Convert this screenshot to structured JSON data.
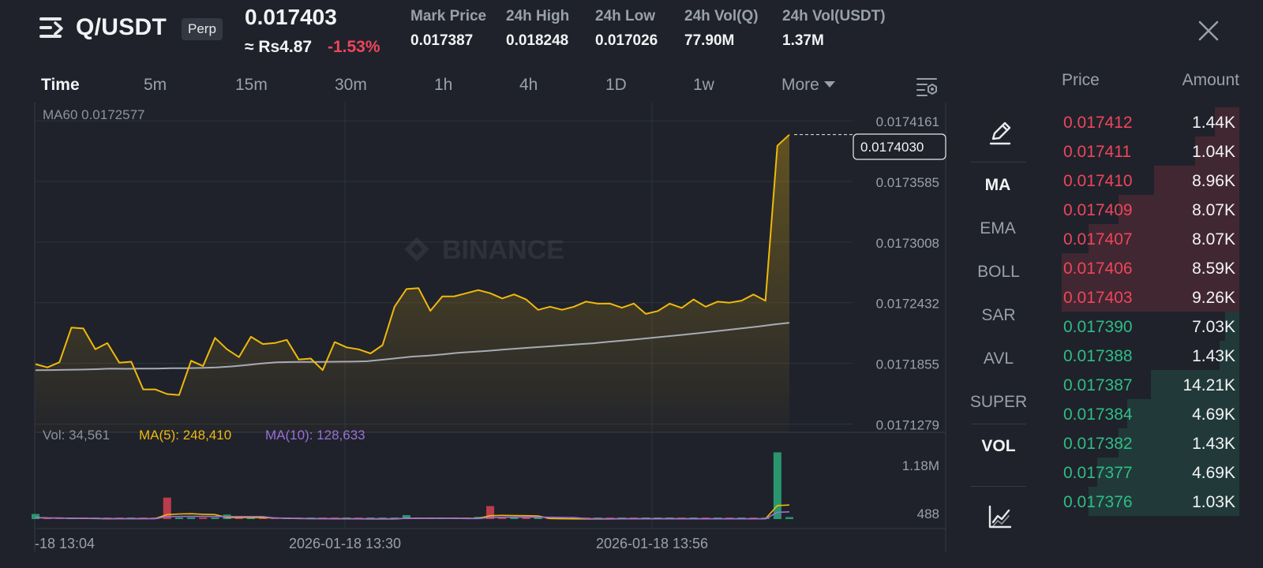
{
  "header": {
    "pair": "Q/USDT",
    "contract_type": "Perp",
    "last_price": "0.017403",
    "fiat_price": "≈ Rs4.87",
    "change_pct": "-1.53%",
    "stats": [
      {
        "label": "Mark Price",
        "value": "0.017387"
      },
      {
        "label": "24h High",
        "value": "0.018248"
      },
      {
        "label": "24h Low",
        "value": "0.017026"
      },
      {
        "label": "24h Vol(Q)",
        "value": "77.90M"
      },
      {
        "label": "24h Vol(USDT)",
        "value": "1.37M"
      }
    ]
  },
  "timeframes": [
    {
      "label": "Time",
      "active": true
    },
    {
      "label": "5m"
    },
    {
      "label": "15m"
    },
    {
      "label": "30m"
    },
    {
      "label": "1h"
    },
    {
      "label": "4h"
    },
    {
      "label": "1D"
    },
    {
      "label": "1w"
    },
    {
      "label": "More"
    }
  ],
  "indicators": [
    {
      "label": "MA",
      "on": true
    },
    {
      "label": "EMA"
    },
    {
      "label": "BOLL"
    },
    {
      "label": "SAR"
    },
    {
      "label": "AVL"
    },
    {
      "label": "SUPER"
    },
    {
      "label": "VOL",
      "on": true
    }
  ],
  "colors": {
    "up": "#2ebd85",
    "down": "#f0455a",
    "price_line": "#f0b90b",
    "ma60_line": "#a7abb4",
    "ma10_vol": "#9b6fd6",
    "bg": "#1f222b"
  },
  "icons": [
    "menu-icon",
    "close-icon",
    "chart-settings-icon",
    "pencil-icon",
    "depth-chart-icon",
    "binance-logo-icon"
  ],
  "chart_data": [
    {
      "type": "line",
      "title": "",
      "legend": "MA60 0.0172577",
      "watermark": "BINANCE",
      "last_price_label": "0.0174030",
      "y_ticks": [
        "0.0174161",
        "0.0173585",
        "0.0173008",
        "0.0172432",
        "0.0171855",
        "0.0171279"
      ],
      "ylim": [
        0.01712,
        0.017426
      ],
      "x_labels": [
        "-18 13:04",
        "2026-01-18 13:30",
        "2026-01-18 13:56"
      ],
      "series": [
        {
          "values": [
            0.0171848,
            0.0171817,
            0.0171866,
            0.0172196,
            0.0172187,
            0.017199,
            0.0172048,
            0.0171862,
            0.0171871,
            0.0171608,
            0.0171608,
            0.0171564,
            0.0171555,
            0.017188,
            0.017183,
            0.0172098,
            0.017199,
            0.0171915,
            0.0172108,
            0.0172039,
            0.0172049,
            0.0172079,
            0.0171892,
            0.0171901,
            0.0171792,
            0.0172058,
            0.0172008,
            0.0171989,
            0.017195,
            0.0172029,
            0.0172394,
            0.0172562,
            0.0172571,
            0.0172355,
            0.0172492,
            0.0172493,
            0.0172522,
            0.0172552,
            0.0172522,
            0.0172473,
            0.0172511,
            0.0172463,
            0.0172364,
            0.0172394,
            0.0172365,
            0.0172394,
            0.0172443,
            0.0172423,
            0.0172424,
            0.0172384,
            0.0172424,
            0.0172326,
            0.0172353,
            0.0172423,
            0.0172383,
            0.0172463,
            0.0172394,
            0.0172442,
            0.0172432,
            0.0172452,
            0.017251,
            0.0172451,
            0.0173925,
            0.017403
          ]
        },
        {
          "name": "MA60",
          "values": [
            0.017179,
            0.0171792,
            0.0171795,
            0.0171796,
            0.01718,
            0.0171805,
            0.0171804,
            0.0171806,
            0.0171806,
            0.017181,
            0.017181,
            0.0171812,
            0.0171817,
            0.0171826,
            0.017184,
            0.0171854,
            0.0171866,
            0.0171868,
            0.017187,
            0.017187,
            0.0171871,
            0.0171872,
            0.0171876,
            0.017189,
            0.0171905,
            0.017192,
            0.0171928,
            0.017194,
            0.0171955,
            0.0171965,
            0.0171975,
            0.0171987,
            0.0171997,
            0.0172007,
            0.0172017,
            0.0172027,
            0.0172037,
            0.0172047,
            0.017206,
            0.0172073,
            0.0172086,
            0.01721,
            0.0172114,
            0.0172128,
            0.0172143,
            0.0172159,
            0.0172175,
            0.0172191,
            0.0172207,
            0.0172225,
            0.0172242
          ]
        }
      ]
    },
    {
      "type": "bar",
      "title": "",
      "legend": {
        "vol": "Vol: 34,561",
        "ma5": "MA(5): 248,410",
        "ma10": "MA(10): 128,633"
      },
      "y_ticks": [
        "1.18M",
        "488"
      ],
      "ylim": [
        0,
        1200000
      ],
      "values": [
        90000,
        2000,
        6000,
        8000,
        2000,
        4000,
        8000,
        12000,
        9000,
        14000,
        5000,
        380000,
        5000,
        30000,
        2000,
        6000,
        80000,
        40000,
        14000,
        9000,
        5000,
        6000,
        2000,
        8000,
        4000,
        2000,
        3000,
        2000,
        2000,
        3000,
        4000,
        70000,
        3000,
        4000,
        2000,
        2000,
        8000,
        40000,
        230000,
        30000,
        6000,
        2000,
        4000,
        2000,
        3000,
        6000,
        2000,
        3000,
        3000,
        9000,
        5000,
        3000,
        2000,
        3000,
        8000,
        4000,
        2000,
        2000,
        7000,
        5000,
        2000,
        2000,
        1180000,
        34561
      ],
      "direction": [
        1,
        -1,
        -1,
        1,
        -1,
        1,
        -1,
        -1,
        1,
        -1,
        -1,
        -1,
        1,
        1,
        -1,
        1,
        1,
        -1,
        1,
        -1,
        -1,
        1,
        -1,
        1,
        -1,
        -1,
        1,
        -1,
        1,
        1,
        1,
        1,
        -1,
        -1,
        1,
        1,
        -1,
        1,
        -1,
        -1,
        1,
        -1,
        1,
        -1,
        1,
        1,
        -1,
        1,
        -1,
        1,
        -1,
        1,
        1,
        1,
        -1,
        1,
        -1,
        1,
        -1,
        1,
        -1,
        1,
        1,
        1
      ],
      "ma5": [
        30000,
        20000,
        18000,
        16000,
        12000,
        10000,
        6000,
        8000,
        9000,
        8000,
        10000,
        80000,
        90000,
        95000,
        85000,
        80000,
        30000,
        30000,
        28000,
        25000,
        20000,
        15000,
        10000,
        8000,
        7000,
        6000,
        5000,
        4000,
        3000,
        3000,
        3000,
        15000,
        15000,
        16000,
        16000,
        16000,
        12000,
        12000,
        60000,
        65000,
        62000,
        60000,
        55000,
        10000,
        6000,
        4000,
        3000,
        3000,
        3000,
        5000,
        5000,
        5000,
        5000,
        5000,
        5000,
        5000,
        4000,
        4000,
        4000,
        4000,
        4000,
        4000,
        240000,
        248410
      ],
      "ma10": [
        25000,
        20000,
        18000,
        16000,
        14000,
        12000,
        10000,
        9000,
        9000,
        9000,
        9000,
        45000,
        46000,
        48000,
        48000,
        46000,
        45000,
        45000,
        45000,
        44000,
        18000,
        14000,
        12000,
        10000,
        9000,
        8000,
        7000,
        6000,
        5000,
        5000,
        5000,
        12000,
        12000,
        12000,
        12000,
        12000,
        10000,
        10000,
        30000,
        32000,
        34000,
        34000,
        34000,
        32000,
        30000,
        28000,
        10000,
        8000,
        6000,
        5000,
        4000,
        4000,
        4000,
        4000,
        4000,
        4000,
        4000,
        4000,
        4000,
        4000,
        4000,
        4000,
        120000,
        128633
      ]
    }
  ],
  "orderbook": {
    "price_label": "Price",
    "amount_label": "Amount",
    "asks": [
      {
        "price": "0.017412",
        "amount": "1.44K",
        "depth": 0.14
      },
      {
        "price": "0.017411",
        "amount": "1.04K",
        "depth": 0.25
      },
      {
        "price": "0.017410",
        "amount": "8.96K",
        "depth": 0.48
      },
      {
        "price": "0.017409",
        "amount": "8.07K",
        "depth": 0.68
      },
      {
        "price": "0.017407",
        "amount": "8.07K",
        "depth": 0.85
      },
      {
        "price": "0.017406",
        "amount": "8.59K",
        "depth": 1.0
      },
      {
        "price": "0.017403",
        "amount": "9.26K",
        "depth": 1.0
      }
    ],
    "bids": [
      {
        "price": "0.017390",
        "amount": "7.03K",
        "depth": 0.08
      },
      {
        "price": "0.017388",
        "amount": "1.43K",
        "depth": 0.11
      },
      {
        "price": "0.017387",
        "amount": "14.21K",
        "depth": 0.5
      },
      {
        "price": "0.017384",
        "amount": "4.69K",
        "depth": 0.63
      },
      {
        "price": "0.017382",
        "amount": "1.43K",
        "depth": 0.68
      },
      {
        "price": "0.017377",
        "amount": "4.69K",
        "depth": 0.8
      },
      {
        "price": "0.017376",
        "amount": "1.03K",
        "depth": 0.85
      }
    ]
  }
}
